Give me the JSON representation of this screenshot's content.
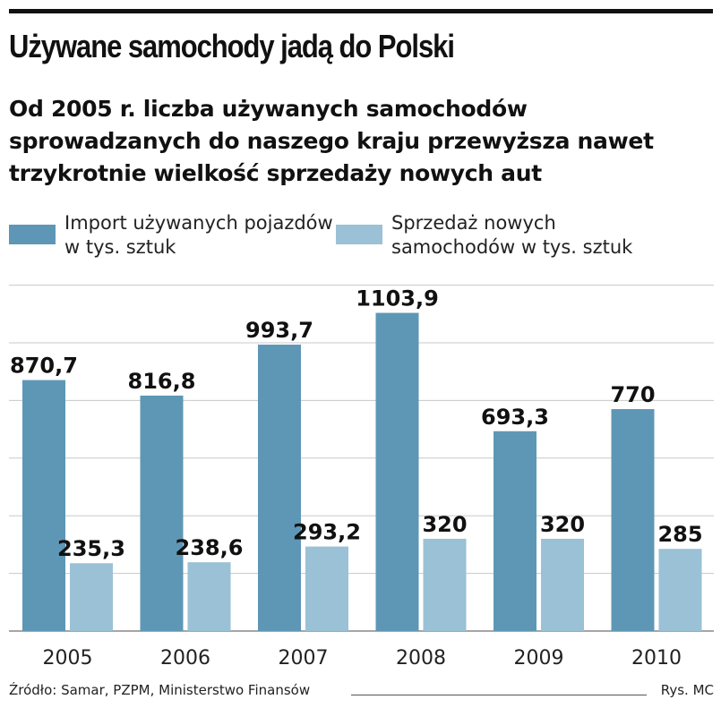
{
  "header": {
    "title": "Używane samochody jadą do Polski",
    "subtitle": "Od 2005 r. liczba używanych samochodów sprowadzanych do naszego kraju przewyższa nawet trzykrotnie wielkość sprzedaży nowych aut"
  },
  "legend": [
    {
      "label": "Import używanych pojazdów w tys. sztuk",
      "color": "#5e97b5"
    },
    {
      "label": "Sprzedaż nowych samochodów w tys. sztuk",
      "color": "#9ac1d6"
    }
  ],
  "chart_data": {
    "type": "bar",
    "categories": [
      "2005",
      "2006",
      "2007",
      "2008",
      "2009",
      "2010"
    ],
    "series": [
      {
        "name": "Import używanych pojazdów w tys. sztuk",
        "color": "#5e97b5",
        "values": [
          870.7,
          816.8,
          993.7,
          1103.9,
          693.3,
          770
        ],
        "labels": [
          "870,7",
          "816,8",
          "993,7",
          "1103,9",
          "693,3",
          "770"
        ]
      },
      {
        "name": "Sprzedaż nowych samochodów w tys. sztuk",
        "color": "#9ac1d6",
        "values": [
          235.3,
          238.6,
          293.2,
          320,
          320,
          285
        ],
        "labels": [
          "235,3",
          "238,6",
          "293,2",
          "320",
          "320",
          "285"
        ]
      }
    ],
    "ylim": [
      0,
      1200
    ],
    "grid": true,
    "legend_position": "top"
  },
  "footer": {
    "source": "Źródło: Samar, PZPM, Ministerstwo Finansów",
    "credit": "Rys. MC"
  }
}
